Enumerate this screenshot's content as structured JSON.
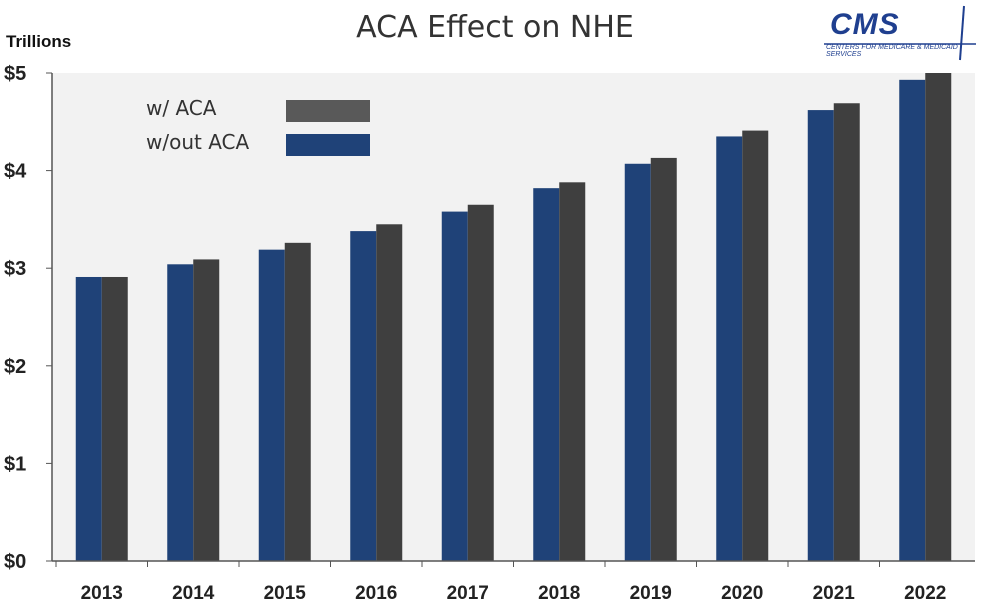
{
  "title": "ACA Effect on NHE",
  "units_label": "Trillions",
  "logo": {
    "name": "CMS",
    "subtitle": "CENTERS FOR MEDICARE & MEDICAID SERVICES"
  },
  "colors": {
    "with_aca": "#3f3f3f",
    "without_aca": "#1f4278",
    "plot_background": "#f2f2f2",
    "legend_with_aca": "#595959"
  },
  "chart_data": {
    "type": "bar",
    "categories": [
      "2013",
      "2014",
      "2015",
      "2016",
      "2017",
      "2018",
      "2019",
      "2020",
      "2021",
      "2022"
    ],
    "series": [
      {
        "name": "w/out ACA",
        "values": [
          2.91,
          3.04,
          3.19,
          3.38,
          3.58,
          3.82,
          4.07,
          4.35,
          4.62,
          4.93
        ]
      },
      {
        "name": "w/ ACA",
        "values": [
          2.91,
          3.09,
          3.26,
          3.45,
          3.65,
          3.88,
          4.13,
          4.41,
          4.69,
          5.0
        ]
      }
    ],
    "ylim": [
      0,
      5
    ],
    "yticks": [
      0,
      1,
      2,
      3,
      4,
      5
    ],
    "ytick_labels": [
      "$0",
      "$1",
      "$2",
      "$3",
      "$4",
      "$5"
    ],
    "legend": {
      "placement": "top-left",
      "entries": [
        "w/ ACA",
        "w/out ACA"
      ]
    },
    "grid": false
  }
}
